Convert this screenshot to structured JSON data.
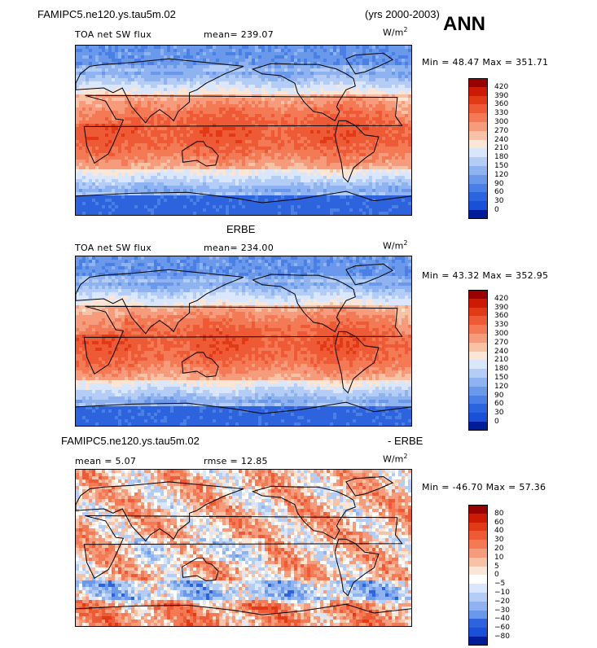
{
  "header": {
    "case_name": "FAMIPC5.ne120.ys.tau5m.02",
    "years": "(yrs 2000-2003)",
    "season": "ANN"
  },
  "panels": [
    {
      "title_center": "",
      "var_label": "TOA net SW flux",
      "mean_text": "mean= 239.07",
      "rmse_text": "",
      "units": "W/m",
      "units_sup": "2",
      "minmax_text": "Min =  48.47 Max = 351.71",
      "levels": [
        "420",
        "390",
        "360",
        "330",
        "300",
        "270",
        "240",
        "210",
        "180",
        "150",
        "120",
        "90",
        "60",
        "30",
        "0"
      ],
      "colors": [
        "#990000",
        "#cc1a05",
        "#e23a17",
        "#ee5a35",
        "#f37a55",
        "#f69c7c",
        "#f8c2a6",
        "#fbe6d6",
        "#d9e6fb",
        "#b4cdf6",
        "#8eb3f0",
        "#6a98ea",
        "#4a7fe5",
        "#2e63de",
        "#1a4fd8",
        "#001d99"
      ]
    },
    {
      "title_center": "ERBE",
      "var_label": "TOA net SW flux",
      "mean_text": "mean= 234.00",
      "rmse_text": "",
      "units": "W/m",
      "units_sup": "2",
      "minmax_text": "Min =  43.32 Max = 352.95",
      "levels": [
        "420",
        "390",
        "360",
        "330",
        "300",
        "270",
        "240",
        "210",
        "180",
        "150",
        "120",
        "90",
        "60",
        "30",
        "0"
      ],
      "colors": [
        "#990000",
        "#cc1a05",
        "#e23a17",
        "#ee5a35",
        "#f37a55",
        "#f69c7c",
        "#f8c2a6",
        "#fbe6d6",
        "#d9e6fb",
        "#b4cdf6",
        "#8eb3f0",
        "#6a98ea",
        "#4a7fe5",
        "#2e63de",
        "#1a4fd8",
        "#001d99"
      ]
    },
    {
      "title_left": "FAMIPC5.ne120.ys.tau5m.02",
      "title_right": "- ERBE",
      "var_label": "",
      "mean_text": "mean =   5.07",
      "rmse_text": "rmse =  12.85",
      "units": "W/m",
      "units_sup": "2",
      "minmax_text": "Min = -46.70 Max =  57.36",
      "levels": [
        "80",
        "60",
        "40",
        "30",
        "20",
        "10",
        "5",
        "0",
        "−5",
        "−10",
        "−20",
        "−30",
        "−40",
        "−60",
        "−80"
      ],
      "colors": [
        "#990000",
        "#cc1a05",
        "#e23a17",
        "#ee5a35",
        "#f37a55",
        "#f69c7c",
        "#f8c2a6",
        "#fbe6d6",
        "#ffffff",
        "#d9e6fb",
        "#b4cdf6",
        "#8eb3f0",
        "#6a98ea",
        "#2e63de",
        "#1a4fd8",
        "#001d99"
      ]
    }
  ]
}
